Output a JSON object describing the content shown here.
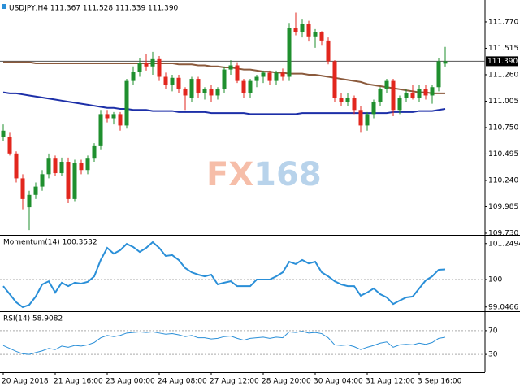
{
  "chart_data": [
    {
      "type": "candlestick",
      "title": "USDJPY,H4  111.367 111.528 111.339 111.390",
      "watermark": [
        "FX",
        "168"
      ],
      "up_color": "#1f8f2e",
      "down_color": "#e2261d",
      "categories": [
        "20 Aug 2018",
        null,
        null,
        null,
        null,
        null,
        null,
        null,
        "21 Aug 16:00",
        null,
        null,
        null,
        null,
        null,
        null,
        null,
        "23 Aug 00:00",
        null,
        null,
        null,
        null,
        null,
        null,
        null,
        "24 Aug 08:00",
        null,
        null,
        null,
        null,
        null,
        null,
        null,
        "27 Aug 12:00",
        null,
        null,
        null,
        null,
        null,
        null,
        null,
        "28 Aug 20:00",
        null,
        null,
        null,
        null,
        null,
        null,
        null,
        "30 Aug 04:00",
        null,
        null,
        null,
        null,
        null,
        null,
        null,
        "31 Aug 12:00",
        null,
        null,
        null,
        null,
        null,
        null,
        null,
        "3 Sep 16:00",
        null,
        null,
        null,
        null
      ],
      "open": [
        110.66,
        110.66,
        110.5,
        110.26,
        109.98,
        110.1,
        110.18,
        110.3,
        110.45,
        110.31,
        110.42,
        110.06,
        110.41,
        110.34,
        110.45,
        110.57,
        110.88,
        110.84,
        110.88,
        110.77,
        111.2,
        111.29,
        111.37,
        111.34,
        111.41,
        111.24,
        111.16,
        111.23,
        111.12,
        111.04,
        111.22,
        111.08,
        111.12,
        111.06,
        111.12,
        111.31,
        111.35,
        111.2,
        111.08,
        111.2,
        111.24,
        111.28,
        111.2,
        111.28,
        111.24,
        111.71,
        111.67,
        111.75,
        111.63,
        111.67,
        111.59,
        111.39,
        111.04,
        111.0,
        111.04,
        110.92,
        110.77,
        110.88,
        111.0,
        111.12,
        111.2,
        110.92,
        111.04,
        111.08,
        111.04,
        111.12,
        111.06,
        111.14,
        111.367
      ],
      "high": [
        110.78,
        110.7,
        110.52,
        110.3,
        110.14,
        110.22,
        110.34,
        110.5,
        110.48,
        110.46,
        110.46,
        110.44,
        110.44,
        110.48,
        110.6,
        110.92,
        110.92,
        110.9,
        110.9,
        111.22,
        111.34,
        111.42,
        111.46,
        111.48,
        111.44,
        111.28,
        111.26,
        111.26,
        111.14,
        111.24,
        111.24,
        111.14,
        111.16,
        111.14,
        111.34,
        111.4,
        111.38,
        111.22,
        111.22,
        111.26,
        111.3,
        111.3,
        111.3,
        111.32,
        111.76,
        111.86,
        111.8,
        111.78,
        111.7,
        111.68,
        111.62,
        111.4,
        111.08,
        111.08,
        111.06,
        110.96,
        110.9,
        111.02,
        111.14,
        111.22,
        111.22,
        111.06,
        111.12,
        111.16,
        111.16,
        111.16,
        111.16,
        111.42,
        111.528
      ],
      "low": [
        110.62,
        110.48,
        110.22,
        109.96,
        109.76,
        110.06,
        110.14,
        110.26,
        110.28,
        110.28,
        110.02,
        110.04,
        110.3,
        110.3,
        110.42,
        110.54,
        110.8,
        110.78,
        110.72,
        110.74,
        111.16,
        111.24,
        111.3,
        111.26,
        111.2,
        111.12,
        111.1,
        111.08,
        110.92,
        111.0,
        111.04,
        111.02,
        111.0,
        111.02,
        111.08,
        111.26,
        111.18,
        111.04,
        111.04,
        111.14,
        111.18,
        111.16,
        111.16,
        111.2,
        111.2,
        111.64,
        111.62,
        111.58,
        111.52,
        111.54,
        111.36,
        111.0,
        110.96,
        110.96,
        110.88,
        110.7,
        110.72,
        110.84,
        110.96,
        111.08,
        110.86,
        110.88,
        111.0,
        111.02,
        111.0,
        111.02,
        110.98,
        111.1,
        111.339
      ],
      "close": [
        110.72,
        110.5,
        110.26,
        110.06,
        110.1,
        110.18,
        110.3,
        110.45,
        110.31,
        110.42,
        110.06,
        110.41,
        110.34,
        110.45,
        110.57,
        110.88,
        110.84,
        110.88,
        110.77,
        111.2,
        111.29,
        111.37,
        111.34,
        111.41,
        111.24,
        111.16,
        111.23,
        111.12,
        111.06,
        111.22,
        111.08,
        111.12,
        111.06,
        111.12,
        111.31,
        111.35,
        111.2,
        111.08,
        111.2,
        111.24,
        111.28,
        111.2,
        111.28,
        111.24,
        111.71,
        111.67,
        111.75,
        111.63,
        111.67,
        111.59,
        111.39,
        111.04,
        111.0,
        111.04,
        110.92,
        110.77,
        110.88,
        111.0,
        111.12,
        111.2,
        110.92,
        111.04,
        111.08,
        111.04,
        111.12,
        111.06,
        111.14,
        111.39,
        111.39
      ],
      "overlays": [
        {
          "color": "#8b5a3c",
          "values": [
            111.38,
            111.38,
            111.38,
            111.38,
            111.38,
            111.37,
            111.37,
            111.37,
            111.37,
            111.37,
            111.37,
            111.37,
            111.37,
            111.37,
            111.37,
            111.37,
            111.37,
            111.37,
            111.37,
            111.37,
            111.37,
            111.37,
            111.37,
            111.37,
            111.37,
            111.37,
            111.37,
            111.36,
            111.36,
            111.36,
            111.35,
            111.35,
            111.34,
            111.34,
            111.33,
            111.33,
            111.32,
            111.31,
            111.31,
            111.3,
            111.29,
            111.29,
            111.28,
            111.28,
            111.27,
            111.27,
            111.27,
            111.26,
            111.26,
            111.25,
            111.24,
            111.23,
            111.22,
            111.21,
            111.2,
            111.19,
            111.17,
            111.16,
            111.15,
            111.14,
            111.13,
            111.12,
            111.11,
            111.1,
            111.09,
            111.09,
            111.08,
            111.08,
            111.08
          ]
        },
        {
          "color": "#1c2fa8",
          "values": [
            111.09,
            111.08,
            111.08,
            111.07,
            111.06,
            111.05,
            111.04,
            111.03,
            111.02,
            111.01,
            111.0,
            110.99,
            110.98,
            110.97,
            110.96,
            110.95,
            110.94,
            110.94,
            110.93,
            110.93,
            110.92,
            110.92,
            110.92,
            110.91,
            110.91,
            110.91,
            110.91,
            110.9,
            110.9,
            110.9,
            110.9,
            110.9,
            110.89,
            110.89,
            110.89,
            110.89,
            110.89,
            110.89,
            110.88,
            110.88,
            110.88,
            110.88,
            110.88,
            110.88,
            110.88,
            110.88,
            110.89,
            110.89,
            110.89,
            110.89,
            110.89,
            110.89,
            110.89,
            110.89,
            110.89,
            110.89,
            110.89,
            110.89,
            110.89,
            110.89,
            110.9,
            110.9,
            110.9,
            110.9,
            110.91,
            110.91,
            110.91,
            110.92,
            110.93
          ]
        }
      ],
      "last_price": {
        "value": 111.39,
        "label": "111.390"
      },
      "ylim": [
        109.714,
        111.958
      ],
      "yticks": [
        {
          "value": 111.77,
          "label": "111.770"
        },
        111.515,
        {
          "value": 111.26,
          "label": "111.260"
        },
        111.005,
        {
          "value": 110.75,
          "label": "110.750"
        },
        110.495,
        {
          "value": 110.24,
          "label": "110.240"
        },
        109.985,
        {
          "value": 109.73,
          "label": "109.730"
        }
      ]
    },
    {
      "type": "line",
      "title": "Momentum(14) 100.3532",
      "color": "#2a8fd8",
      "values": [
        99.77,
        99.49,
        99.21,
        99.04,
        99.12,
        99.41,
        99.83,
        99.94,
        99.55,
        99.89,
        99.77,
        99.89,
        99.86,
        99.92,
        100.11,
        100.68,
        101.1,
        100.9,
        101.02,
        101.24,
        101.13,
        100.96,
        101.1,
        101.3,
        101.1,
        100.82,
        100.85,
        100.68,
        100.4,
        100.25,
        100.17,
        100.11,
        100.17,
        99.83,
        99.89,
        99.94,
        99.77,
        99.77,
        99.77,
        100.0,
        100.0,
        100.0,
        100.11,
        100.25,
        100.62,
        100.54,
        100.68,
        100.56,
        100.62,
        100.25,
        100.11,
        99.94,
        99.83,
        99.77,
        99.77,
        99.44,
        99.55,
        99.69,
        99.49,
        99.38,
        99.15,
        99.27,
        99.38,
        99.41,
        99.69,
        99.97,
        100.11,
        100.34,
        100.3532
      ],
      "ylim": [
        98.955,
        101.497
      ],
      "yticks": [
        101.2494,
        100,
        99.0466
      ],
      "reference_line": 100
    },
    {
      "type": "line",
      "title": "RSI(14) 58.9082",
      "color": "#2a8fd8",
      "values": [
        45,
        40,
        35,
        31,
        30,
        33,
        36,
        40,
        38,
        44,
        42,
        45,
        44,
        46,
        50,
        58,
        62,
        60,
        62,
        66,
        67,
        68,
        67,
        68,
        66,
        64,
        65,
        63,
        60,
        62,
        58,
        58,
        56,
        57,
        60,
        61,
        57,
        54,
        57,
        58,
        59,
        57,
        59,
        58,
        68,
        67,
        69,
        66,
        67,
        65,
        58,
        46,
        45,
        46,
        43,
        38,
        42,
        45,
        49,
        51,
        42,
        46,
        47,
        46,
        49,
        47,
        50,
        57,
        58.9082
      ],
      "ylim": [
        0,
        100
      ],
      "yticks": [
        70,
        30
      ],
      "grid": true
    }
  ]
}
